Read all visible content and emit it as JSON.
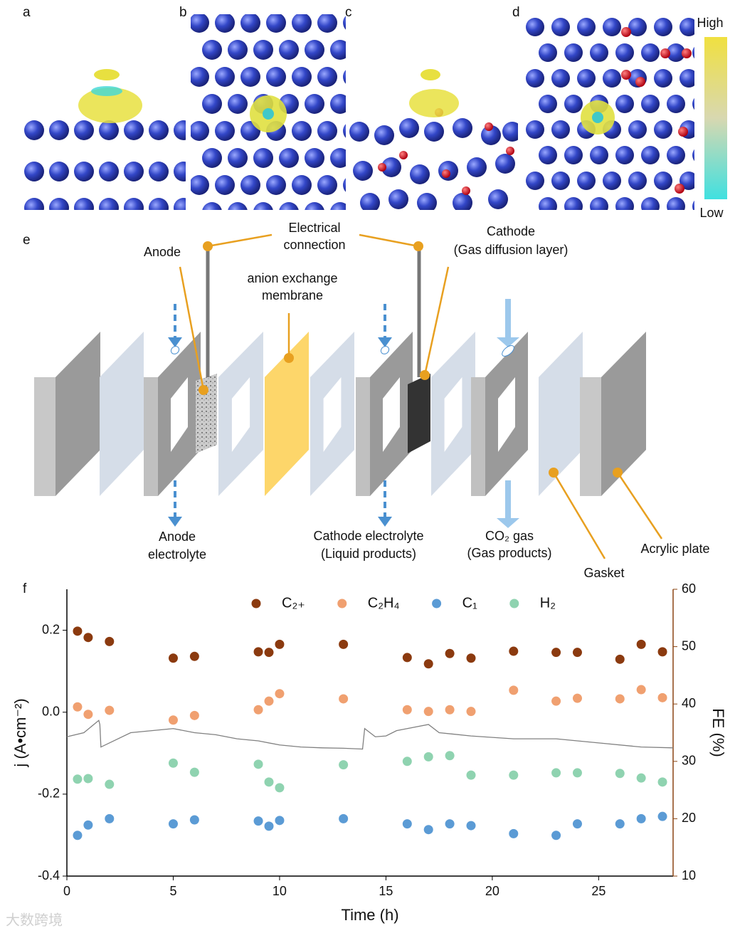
{
  "panel_labels": [
    "a",
    "b",
    "c",
    "d",
    "e",
    "f"
  ],
  "colorbar": {
    "high": "High",
    "low": "Low"
  },
  "diagram": {
    "electrical_connection": [
      "Electrical",
      "connection"
    ],
    "anode": "Anode",
    "cathode": [
      "Cathode",
      "(Gas diffusion layer)"
    ],
    "membrane": [
      "anion exchange",
      "membrane"
    ],
    "anode_electrolyte": [
      "Anode",
      "electrolyte"
    ],
    "cathode_electrolyte": [
      "Cathode electrolyte",
      "(Liquid products)"
    ],
    "co2_gas": [
      "CO₂ gas",
      "(Gas products)"
    ],
    "gasket": "Gasket",
    "acrylic_plate": "Acrylic plate"
  },
  "watermark": "大数跨境",
  "chart_data": {
    "type": "scatter",
    "xlabel": "Time (h)",
    "ylabel": "j (A•cm⁻²)",
    "y2label": "FE (%)",
    "xlim": [
      0,
      28.5
    ],
    "xticks": [
      0,
      5,
      10,
      15,
      20,
      25
    ],
    "ylim": [
      -0.4,
      0.3
    ],
    "yticks": [
      -0.4,
      -0.2,
      {
        "value": 0,
        "label": "0.0"
      },
      0.2
    ],
    "y2lim": [
      10,
      60
    ],
    "y2ticks": [
      10,
      20,
      30,
      40,
      50,
      60
    ],
    "y2color": "#8b4513",
    "x": [
      0.5,
      1,
      2,
      5,
      6,
      9,
      9.5,
      10,
      13,
      16,
      17,
      18,
      19,
      21,
      23,
      24,
      26,
      27,
      28
    ],
    "series": [
      {
        "style": "line",
        "axis": "y",
        "color": "#808080",
        "x": [
          0,
          0.8,
          1.5,
          1.55,
          1.6,
          3,
          5,
          6,
          7,
          8,
          9,
          10,
          11,
          12,
          13,
          13.9,
          14,
          14.5,
          15,
          15.5,
          16,
          17,
          17.5,
          19,
          21,
          23,
          25,
          27,
          28.5
        ],
        "values": [
          -0.06,
          -0.05,
          -0.02,
          -0.03,
          -0.085,
          -0.05,
          -0.04,
          -0.05,
          -0.055,
          -0.065,
          -0.07,
          -0.08,
          -0.085,
          -0.087,
          -0.088,
          -0.09,
          -0.04,
          -0.06,
          -0.058,
          -0.045,
          -0.04,
          -0.03,
          -0.05,
          -0.058,
          -0.065,
          -0.065,
          -0.075,
          -0.085,
          -0.087
        ]
      },
      {
        "name": "C₂₊",
        "axis": "y2",
        "color": "#8b3a0f",
        "values": [
          52.7,
          51.6,
          50.9,
          48.0,
          48.3,
          49.1,
          49.0,
          50.4,
          50.4,
          48.1,
          47.0,
          48.8,
          48.0,
          49.2,
          49.0,
          49.0,
          47.8,
          50.4,
          49.1
        ]
      },
      {
        "name": "C₂H₄",
        "axis": "y2",
        "color": "#f0a070",
        "values": [
          39.5,
          38.2,
          38.9,
          37.2,
          38.0,
          39.0,
          40.5,
          41.8,
          40.9,
          39.0,
          38.7,
          39.0,
          38.7,
          42.4,
          40.5,
          41.0,
          40.9,
          42.5,
          41.1
        ]
      },
      {
        "name": "C₁",
        "axis": "y2",
        "color": "#5b9bd5",
        "values": [
          17.1,
          18.9,
          20.0,
          19.1,
          19.8,
          19.6,
          18.7,
          19.7,
          20.0,
          19.1,
          18.1,
          19.1,
          18.8,
          17.4,
          17.1,
          19.1,
          19.1,
          20.0,
          20.4
        ]
      },
      {
        "name": "H₂",
        "axis": "y2",
        "color": "#8fd3b0",
        "values": [
          26.9,
          27.0,
          26.0,
          29.7,
          28.1,
          29.5,
          26.4,
          25.4,
          29.4,
          30.0,
          30.8,
          31.0,
          27.6,
          27.6,
          28.0,
          28.0,
          27.9,
          27.1,
          26.4
        ]
      }
    ]
  }
}
